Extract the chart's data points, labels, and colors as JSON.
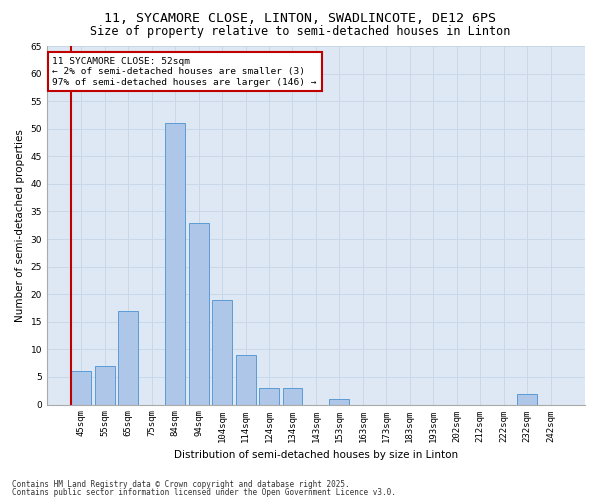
{
  "title1": "11, SYCAMORE CLOSE, LINTON, SWADLINCOTE, DE12 6PS",
  "title2": "Size of property relative to semi-detached houses in Linton",
  "xlabel": "Distribution of semi-detached houses by size in Linton",
  "ylabel": "Number of semi-detached properties",
  "annotation_title": "11 SYCAMORE CLOSE: 52sqm",
  "annotation_line1": "← 2% of semi-detached houses are smaller (3)",
  "annotation_line2": "97% of semi-detached houses are larger (146) →",
  "footer1": "Contains HM Land Registry data © Crown copyright and database right 2025.",
  "footer2": "Contains public sector information licensed under the Open Government Licence v3.0.",
  "categories": [
    "45sqm",
    "55sqm",
    "65sqm",
    "75sqm",
    "84sqm",
    "94sqm",
    "104sqm",
    "114sqm",
    "124sqm",
    "134sqm",
    "143sqm",
    "153sqm",
    "163sqm",
    "173sqm",
    "183sqm",
    "193sqm",
    "202sqm",
    "212sqm",
    "222sqm",
    "232sqm",
    "242sqm"
  ],
  "values": [
    6,
    7,
    17,
    0,
    51,
    33,
    19,
    9,
    3,
    3,
    0,
    1,
    0,
    0,
    0,
    0,
    0,
    0,
    0,
    2,
    0
  ],
  "bar_color": "#aec6e8",
  "bar_edge_color": "#5b9bd5",
  "highlight_color": "#c00000",
  "ylim": [
    0,
    65
  ],
  "yticks": [
    0,
    5,
    10,
    15,
    20,
    25,
    30,
    35,
    40,
    45,
    50,
    55,
    60,
    65
  ],
  "grid_color": "#c8d8e8",
  "background_color": "#dde8f4",
  "title_fontsize": 9.5,
  "subtitle_fontsize": 8.5,
  "axis_fontsize": 7.5,
  "tick_fontsize": 6.5,
  "annotation_fontsize": 6.8,
  "footer_fontsize": 5.5
}
